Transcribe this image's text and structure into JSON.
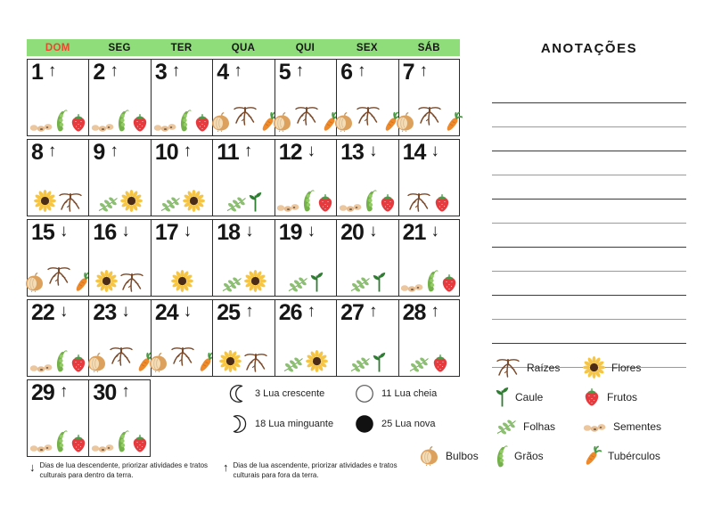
{
  "colors": {
    "header_bg": "#8edc7a",
    "sunday_red": "#e8492e"
  },
  "header": {
    "weekdays": [
      "DOM",
      "SEG",
      "TER",
      "QUA",
      "QUI",
      "SEX",
      "SÁB"
    ]
  },
  "calendar": {
    "trend_up_char": "↑",
    "trend_down_char": "↓",
    "days": [
      {
        "num": 1,
        "trend": "up",
        "icons": [
          "sementes",
          "graos",
          "frutos"
        ]
      },
      {
        "num": 2,
        "trend": "up",
        "icons": [
          "sementes",
          "graos",
          "frutos"
        ]
      },
      {
        "num": 3,
        "trend": "up",
        "icons": [
          "sementes",
          "graos",
          "frutos"
        ]
      },
      {
        "num": 4,
        "trend": "up",
        "icons": [
          "bulbos",
          "raizes",
          "tuberculos"
        ]
      },
      {
        "num": 5,
        "trend": "up",
        "icons": [
          "bulbos",
          "raizes",
          "tuberculos"
        ]
      },
      {
        "num": 6,
        "trend": "up",
        "icons": [
          "bulbos",
          "raizes",
          "tuberculos"
        ]
      },
      {
        "num": 7,
        "trend": "up",
        "icons": [
          "bulbos",
          "raizes",
          "tuberculos"
        ]
      },
      {
        "num": 8,
        "trend": "up",
        "icons": [
          "flores",
          "raizes"
        ]
      },
      {
        "num": 9,
        "trend": "up",
        "icons": [
          "folhas",
          "flores"
        ]
      },
      {
        "num": 10,
        "trend": "up",
        "icons": [
          "folhas",
          "flores"
        ]
      },
      {
        "num": 11,
        "trend": "up",
        "icons": [
          "folhas",
          "caule"
        ]
      },
      {
        "num": 12,
        "trend": "down",
        "icons": [
          "sementes",
          "graos",
          "frutos"
        ]
      },
      {
        "num": 13,
        "trend": "down",
        "icons": [
          "sementes",
          "graos",
          "frutos"
        ]
      },
      {
        "num": 14,
        "trend": "down",
        "icons": [
          "raizes",
          "frutos"
        ]
      },
      {
        "num": 15,
        "trend": "down",
        "icons": [
          "bulbos",
          "raizes",
          "tuberculos"
        ]
      },
      {
        "num": 16,
        "trend": "down",
        "icons": [
          "flores",
          "raizes"
        ]
      },
      {
        "num": 17,
        "trend": "down",
        "icons": [
          "flores"
        ]
      },
      {
        "num": 18,
        "trend": "down",
        "icons": [
          "folhas",
          "flores"
        ]
      },
      {
        "num": 19,
        "trend": "down",
        "icons": [
          "folhas",
          "caule"
        ]
      },
      {
        "num": 20,
        "trend": "down",
        "icons": [
          "folhas",
          "caule"
        ]
      },
      {
        "num": 21,
        "trend": "down",
        "icons": [
          "sementes",
          "graos",
          "frutos"
        ]
      },
      {
        "num": 22,
        "trend": "down",
        "icons": [
          "sementes",
          "graos",
          "frutos"
        ]
      },
      {
        "num": 23,
        "trend": "down",
        "icons": [
          "bulbos",
          "raizes",
          "tuberculos"
        ]
      },
      {
        "num": 24,
        "trend": "down",
        "icons": [
          "bulbos",
          "raizes",
          "tuberculos"
        ]
      },
      {
        "num": 25,
        "trend": "up",
        "icons": [
          "flores",
          "raizes"
        ]
      },
      {
        "num": 26,
        "trend": "up",
        "icons": [
          "folhas",
          "flores"
        ]
      },
      {
        "num": 27,
        "trend": "up",
        "icons": [
          "folhas",
          "caule"
        ]
      },
      {
        "num": 28,
        "trend": "up",
        "icons": [
          "folhas",
          "frutos"
        ]
      },
      {
        "num": 29,
        "trend": "up",
        "icons": [
          "sementes",
          "graos",
          "frutos"
        ]
      },
      {
        "num": 30,
        "trend": "up",
        "icons": [
          "sementes",
          "graos",
          "frutos"
        ]
      }
    ]
  },
  "annotations": {
    "title": "ANOTAÇÕES",
    "line_count": 12
  },
  "moon_legend": {
    "items": [
      {
        "icon": "waxing-crescent-moon",
        "label": "3 Lua crescente"
      },
      {
        "icon": "full-moon",
        "label": "11 Lua cheia"
      },
      {
        "icon": "waning-crescent-moon",
        "label": "18 Lua minguante"
      },
      {
        "icon": "new-moon",
        "label": "25 Lua nova"
      }
    ]
  },
  "plant_legend": {
    "rows": [
      [
        {
          "icon": "raizes",
          "label": "Raízes"
        },
        {
          "icon": "flores",
          "label": "Flores"
        }
      ],
      [
        {
          "icon": "caule",
          "label": "Caule"
        },
        {
          "icon": "frutos",
          "label": "Frutos"
        }
      ],
      [
        {
          "icon": "folhas",
          "label": "Folhas"
        },
        {
          "icon": "sementes",
          "label": "Sementes"
        }
      ],
      [
        {
          "icon": "bulbos",
          "label": "Bulbos"
        },
        {
          "icon": "graos",
          "label": "Grãos"
        },
        {
          "icon": "tuberculos",
          "label": "Tubérculos"
        }
      ]
    ]
  },
  "footnotes": [
    {
      "arrow_char": "↓",
      "text": "Dias de lua descendente, priorizar atividades e tratos culturais para dentro da terra."
    },
    {
      "arrow_char": "↑",
      "text": "Dias de lua ascendente, priorizar atividades e tratos culturais para fora da terra."
    }
  ]
}
